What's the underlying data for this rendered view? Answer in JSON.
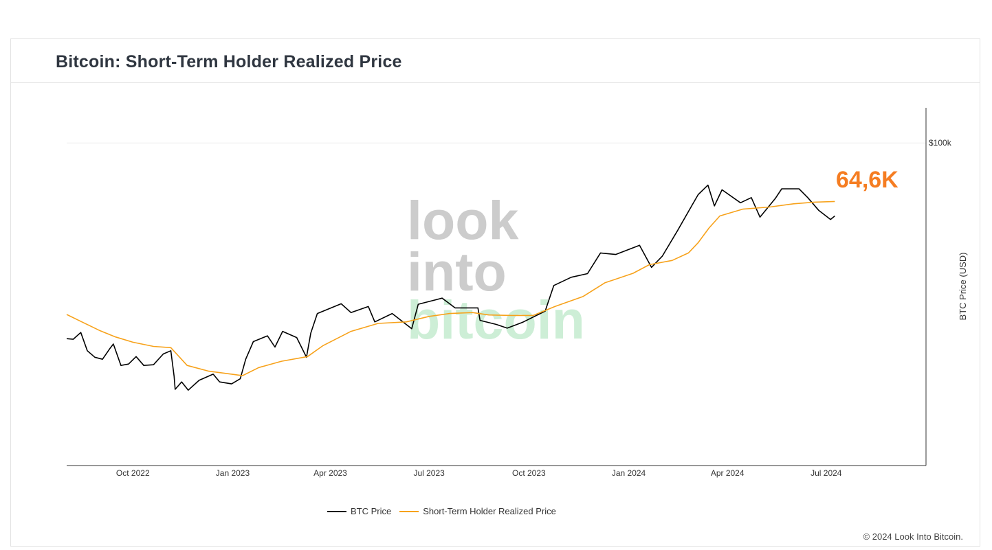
{
  "title": "Bitcoin: Short-Term Holder Realized Price",
  "annotation": "64,6K",
  "copyright": "© 2024 Look Into Bitcoin.",
  "watermark": {
    "line1": "look",
    "line2": "into",
    "line3": "bitcoin"
  },
  "colors": {
    "btc": "#000000",
    "sth": "#f7a21b",
    "annotation": "#f57d22",
    "grid": "#eeeeee",
    "watermark_gray": "#cccccc",
    "watermark_green": "#cdeed6"
  },
  "legend": [
    {
      "label": "BTC Price",
      "color": "#000000"
    },
    {
      "label": "Short-Term Holder Realized Price",
      "color": "#f7a21b"
    }
  ],
  "chart_data": {
    "type": "line",
    "ylabel": "BTC Price (USD)",
    "yscale": "log",
    "ylim": [
      9000,
      130000
    ],
    "ytick": {
      "value": 100000,
      "label": "$100k"
    },
    "xlim": [
      "2022-08-01",
      "2024-10-01"
    ],
    "xticks": [
      {
        "date": "2022-10-01",
        "label": "Oct 2022"
      },
      {
        "date": "2023-01-01",
        "label": "Jan 2023"
      },
      {
        "date": "2023-04-01",
        "label": "Apr 2023"
      },
      {
        "date": "2023-07-01",
        "label": "Jul 2023"
      },
      {
        "date": "2023-10-01",
        "label": "Oct 2023"
      },
      {
        "date": "2024-01-01",
        "label": "Jan 2024"
      },
      {
        "date": "2024-04-01",
        "label": "Apr 2024"
      },
      {
        "date": "2024-07-01",
        "label": "Jul 2024"
      }
    ],
    "series": [
      {
        "name": "BTC Price",
        "points": [
          [
            "2022-08-01",
            23200
          ],
          [
            "2022-08-07",
            23100
          ],
          [
            "2022-08-14",
            24300
          ],
          [
            "2022-08-20",
            21200
          ],
          [
            "2022-08-27",
            20200
          ],
          [
            "2022-09-03",
            19900
          ],
          [
            "2022-09-10",
            21600
          ],
          [
            "2022-09-13",
            22300
          ],
          [
            "2022-09-20",
            19000
          ],
          [
            "2022-09-27",
            19200
          ],
          [
            "2022-10-04",
            20300
          ],
          [
            "2022-10-11",
            19000
          ],
          [
            "2022-10-20",
            19100
          ],
          [
            "2022-10-29",
            20700
          ],
          [
            "2022-11-05",
            21200
          ],
          [
            "2022-11-08",
            17500
          ],
          [
            "2022-11-09",
            15900
          ],
          [
            "2022-11-15",
            16800
          ],
          [
            "2022-11-21",
            15800
          ],
          [
            "2022-12-01",
            17000
          ],
          [
            "2022-12-14",
            17800
          ],
          [
            "2022-12-20",
            16800
          ],
          [
            "2022-12-31",
            16550
          ],
          [
            "2023-01-08",
            17200
          ],
          [
            "2023-01-13",
            19900
          ],
          [
            "2023-01-20",
            22700
          ],
          [
            "2023-02-02",
            23700
          ],
          [
            "2023-02-09",
            21800
          ],
          [
            "2023-02-16",
            24500
          ],
          [
            "2023-03-01",
            23400
          ],
          [
            "2023-03-10",
            20200
          ],
          [
            "2023-03-14",
            24200
          ],
          [
            "2023-03-20",
            28000
          ],
          [
            "2023-04-11",
            30100
          ],
          [
            "2023-04-20",
            28200
          ],
          [
            "2023-05-06",
            29500
          ],
          [
            "2023-05-12",
            26300
          ],
          [
            "2023-05-28",
            28000
          ],
          [
            "2023-06-15",
            25000
          ],
          [
            "2023-06-21",
            30000
          ],
          [
            "2023-07-13",
            31400
          ],
          [
            "2023-07-25",
            29200
          ],
          [
            "2023-08-15",
            29200
          ],
          [
            "2023-08-17",
            26600
          ],
          [
            "2023-09-01",
            25800
          ],
          [
            "2023-09-11",
            25100
          ],
          [
            "2023-09-25",
            26200
          ],
          [
            "2023-10-16",
            28500
          ],
          [
            "2023-10-24",
            34500
          ],
          [
            "2023-11-09",
            36700
          ],
          [
            "2023-11-24",
            37700
          ],
          [
            "2023-12-06",
            44000
          ],
          [
            "2023-12-20",
            43500
          ],
          [
            "2024-01-11",
            46600
          ],
          [
            "2024-01-22",
            39500
          ],
          [
            "2024-02-01",
            43000
          ],
          [
            "2024-02-15",
            52000
          ],
          [
            "2024-02-28",
            62500
          ],
          [
            "2024-03-05",
            68000
          ],
          [
            "2024-03-14",
            73000
          ],
          [
            "2024-03-20",
            62500
          ],
          [
            "2024-03-27",
            70500
          ],
          [
            "2024-04-13",
            64000
          ],
          [
            "2024-04-23",
            66500
          ],
          [
            "2024-05-01",
            57500
          ],
          [
            "2024-05-15",
            66000
          ],
          [
            "2024-05-21",
            71000
          ],
          [
            "2024-06-06",
            71000
          ],
          [
            "2024-06-14",
            66500
          ],
          [
            "2024-06-24",
            60500
          ],
          [
            "2024-07-05",
            56500
          ],
          [
            "2024-07-09",
            58000
          ]
        ]
      },
      {
        "name": "Short-Term Holder Realized Price",
        "points": [
          [
            "2022-08-01",
            27800
          ],
          [
            "2022-08-15",
            26300
          ],
          [
            "2022-09-01",
            24600
          ],
          [
            "2022-09-15",
            23500
          ],
          [
            "2022-10-01",
            22600
          ],
          [
            "2022-10-20",
            21900
          ],
          [
            "2022-11-05",
            21700
          ],
          [
            "2022-11-20",
            19000
          ],
          [
            "2022-12-10",
            18200
          ],
          [
            "2022-12-31",
            17800
          ],
          [
            "2023-01-10",
            17600
          ],
          [
            "2023-01-25",
            18700
          ],
          [
            "2023-02-15",
            19600
          ],
          [
            "2023-03-11",
            20300
          ],
          [
            "2023-03-25",
            22000
          ],
          [
            "2023-04-20",
            24500
          ],
          [
            "2023-05-15",
            26000
          ],
          [
            "2023-06-10",
            26300
          ],
          [
            "2023-07-01",
            27400
          ],
          [
            "2023-07-20",
            28000
          ],
          [
            "2023-08-10",
            28200
          ],
          [
            "2023-08-25",
            27700
          ],
          [
            "2023-09-15",
            27600
          ],
          [
            "2023-10-05",
            27600
          ],
          [
            "2023-10-25",
            29500
          ],
          [
            "2023-11-20",
            31800
          ],
          [
            "2023-12-10",
            35200
          ],
          [
            "2024-01-05",
            37800
          ],
          [
            "2024-01-20",
            40300
          ],
          [
            "2024-02-10",
            41600
          ],
          [
            "2024-02-25",
            44000
          ],
          [
            "2024-03-05",
            47500
          ],
          [
            "2024-03-15",
            53000
          ],
          [
            "2024-03-25",
            58000
          ],
          [
            "2024-04-15",
            61000
          ],
          [
            "2024-05-10",
            62000
          ],
          [
            "2024-06-01",
            63500
          ],
          [
            "2024-06-20",
            64300
          ],
          [
            "2024-07-09",
            64600
          ]
        ]
      }
    ]
  }
}
